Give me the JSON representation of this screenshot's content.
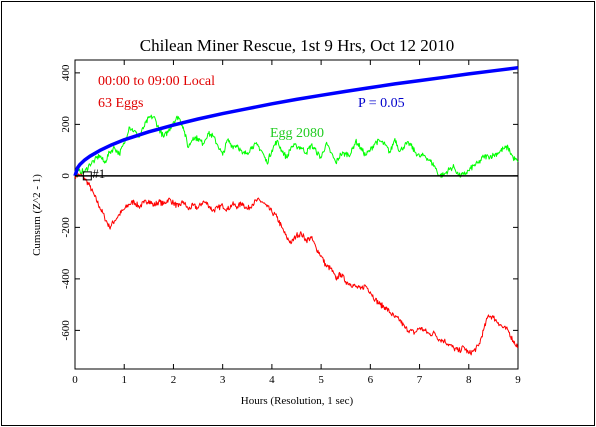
{
  "chart_data": {
    "type": "line",
    "title": "Chilean Miner Rescue, 1st 9 Hrs, Oct 12 2010",
    "xlabel": "Hours (Resolution, 1 sec)",
    "ylabel": "Cumsum (Z^2 - 1)",
    "xlim": [
      0,
      9
    ],
    "ylim": [
      -750,
      450
    ],
    "x_ticks": [
      "0",
      "1",
      "2",
      "3",
      "4",
      "5",
      "6",
      "7",
      "8",
      "9"
    ],
    "y_ticks": [
      "400",
      "200",
      "0",
      "-200",
      "-400",
      "-600"
    ],
    "grid": false,
    "annotations": {
      "time_range": "00:00 to 09:00 Local",
      "egg_count": "63 Eggs",
      "probability_label": "P = 0.05",
      "egg_label": "Egg 2080",
      "marker_label": "#1"
    },
    "series": [
      {
        "color": "#ff0000",
        "x": [
          0,
          0.1,
          0.2,
          0.3,
          0.4,
          0.5,
          0.6,
          0.7,
          0.8,
          0.9,
          1.0,
          1.1,
          1.2,
          1.3,
          1.4,
          1.5,
          1.6,
          1.7,
          1.8,
          1.9,
          2.0,
          2.1,
          2.2,
          2.3,
          2.4,
          2.5,
          2.6,
          2.7,
          2.8,
          2.9,
          3.0,
          3.1,
          3.2,
          3.3,
          3.4,
          3.5,
          3.6,
          3.7,
          3.8,
          3.9,
          4.0,
          4.1,
          4.2,
          4.3,
          4.4,
          4.5,
          4.6,
          4.7,
          4.8,
          4.9,
          5.0,
          5.1,
          5.2,
          5.3,
          5.4,
          5.5,
          5.6,
          5.7,
          5.8,
          5.9,
          6.0,
          6.1,
          6.2,
          6.3,
          6.4,
          6.5,
          6.6,
          6.7,
          6.8,
          6.9,
          7.0,
          7.1,
          7.2,
          7.3,
          7.4,
          7.5,
          7.6,
          7.7,
          7.8,
          7.9,
          8.0,
          8.1,
          8.2,
          8.3,
          8.4,
          8.5,
          8.6,
          8.7,
          8.8,
          8.9,
          9.0
        ],
        "y": [
          0,
          5,
          -10,
          -40,
          -80,
          -120,
          -160,
          -200,
          -175,
          -150,
          -130,
          -110,
          -100,
          -120,
          -105,
          -95,
          -115,
          -100,
          -110,
          -90,
          -105,
          -120,
          -100,
          -130,
          -115,
          -125,
          -100,
          -110,
          -135,
          -125,
          -115,
          -130,
          -110,
          -120,
          -105,
          -130,
          -110,
          -95,
          -100,
          -120,
          -140,
          -160,
          -200,
          -240,
          -260,
          -230,
          -225,
          -250,
          -240,
          -280,
          -310,
          -350,
          -360,
          -400,
          -380,
          -410,
          -420,
          -430,
          -440,
          -425,
          -450,
          -480,
          -500,
          -510,
          -530,
          -550,
          -560,
          -590,
          -600,
          -610,
          -590,
          -600,
          -615,
          -610,
          -635,
          -640,
          -655,
          -670,
          -680,
          -665,
          -690,
          -680,
          -660,
          -600,
          -540,
          -550,
          -570,
          -590,
          -600,
          -640,
          -665
        ]
      },
      {
        "color": "#00ff00",
        "x": [
          0,
          0.1,
          0.2,
          0.3,
          0.4,
          0.5,
          0.6,
          0.7,
          0.8,
          0.9,
          1.0,
          1.1,
          1.2,
          1.3,
          1.4,
          1.5,
          1.6,
          1.7,
          1.8,
          1.9,
          2.0,
          2.1,
          2.2,
          2.3,
          2.4,
          2.5,
          2.6,
          2.7,
          2.8,
          2.9,
          3.0,
          3.1,
          3.2,
          3.3,
          3.4,
          3.5,
          3.6,
          3.7,
          3.8,
          3.9,
          4.0,
          4.1,
          4.2,
          4.3,
          4.4,
          4.5,
          4.6,
          4.7,
          4.8,
          4.9,
          5.0,
          5.1,
          5.2,
          5.3,
          5.4,
          5.5,
          5.6,
          5.7,
          5.8,
          5.9,
          6.0,
          6.1,
          6.2,
          6.3,
          6.4,
          6.5,
          6.6,
          6.7,
          6.8,
          6.9,
          7.0,
          7.1,
          7.2,
          7.3,
          7.4,
          7.5,
          7.6,
          7.7,
          7.8,
          7.9,
          8.0,
          8.1,
          8.2,
          8.3,
          8.4,
          8.5,
          8.6,
          8.7,
          8.8,
          8.9,
          9.0
        ],
        "y": [
          0,
          20,
          15,
          45,
          60,
          80,
          50,
          90,
          110,
          85,
          125,
          190,
          175,
          150,
          190,
          225,
          230,
          185,
          150,
          175,
          210,
          230,
          190,
          110,
          150,
          145,
          125,
          165,
          155,
          120,
          80,
          140,
          115,
          120,
          85,
          90,
          115,
          120,
          95,
          50,
          100,
          135,
          100,
          70,
          115,
          115,
          110,
          90,
          120,
          95,
          70,
          125,
          90,
          50,
          85,
          85,
          85,
          135,
          110,
          80,
          100,
          130,
          135,
          120,
          90,
          145,
          95,
          120,
          125,
          95,
          75,
          80,
          60,
          40,
          0,
          5,
          25,
          35,
          0,
          5,
          20,
          40,
          50,
          75,
          75,
          80,
          90,
          105,
          110,
          70,
          55
        ]
      },
      {
        "color": "#0000ff",
        "x": [
          0,
          0.05,
          0.1,
          0.2,
          0.3,
          0.5,
          0.75,
          1.0,
          1.5,
          2.0,
          2.5,
          3.0,
          3.5,
          4.0,
          4.5,
          5.0,
          5.5,
          6.0,
          6.5,
          7.0,
          7.5,
          8.0,
          8.5,
          9.0
        ],
        "y": [
          0,
          31,
          44,
          62,
          76,
          98,
          121,
          140,
          171,
          197,
          221,
          242,
          261,
          280,
          297,
          313,
          328,
          343,
          357,
          370,
          383,
          396,
          408,
          420
        ]
      }
    ]
  }
}
